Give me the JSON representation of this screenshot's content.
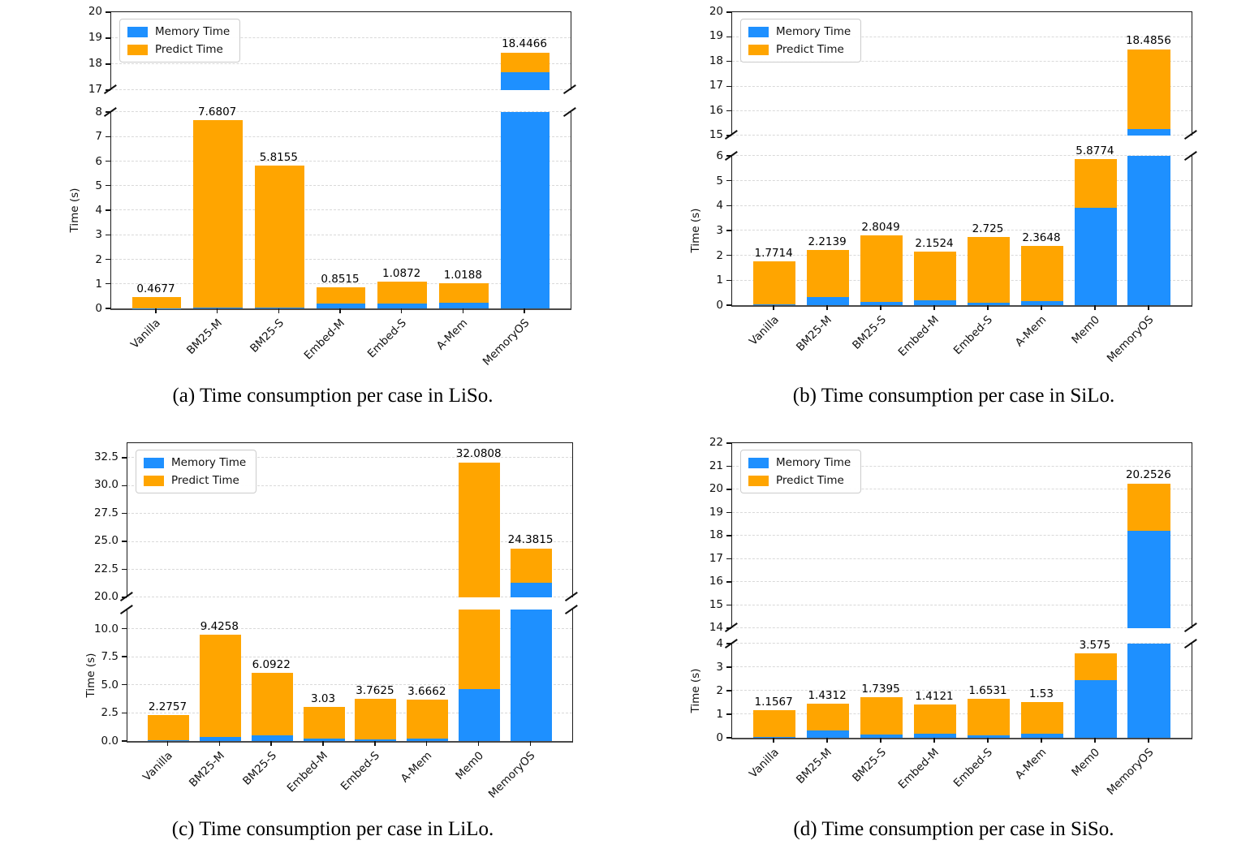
{
  "figure": {
    "legend": {
      "memory_label": "Memory Time",
      "predict_label": "Predict Time",
      "position": "upper left"
    },
    "colors": {
      "memory": "#1E90FF",
      "predict": "#FFA500",
      "grid": "#d9d9d9",
      "label_text": "#000000"
    },
    "ylabel": "Time (s)"
  },
  "chart_data": [
    {
      "id": "a",
      "type": "bar",
      "stacked": true,
      "caption": "(a) Time consumption per case in LiSo.",
      "ylabel": "Time (s)",
      "grid": true,
      "axis_break": true,
      "legend_position": "upper-left",
      "categories": [
        "Vanilla",
        "BM25-M",
        "BM25-S",
        "Embed-M",
        "Embed-S",
        "A-Mem",
        "MemoryOS"
      ],
      "series": [
        {
          "name": "Memory Time",
          "values": [
            0.01,
            0.03,
            0.03,
            0.2,
            0.2,
            0.23,
            17.7
          ]
        },
        {
          "name": "Predict Time",
          "values": [
            0.4577,
            7.6507,
            5.7855,
            0.6515,
            0.8872,
            0.7888,
            0.7466
          ]
        }
      ],
      "totals": [
        0.4677,
        7.6807,
        5.8155,
        0.8515,
        1.0872,
        1.0188,
        18.4466
      ],
      "total_labels": [
        "0.4677",
        "7.6807",
        "5.8155",
        "0.8515",
        "1.0872",
        "1.0188",
        "18.4466"
      ],
      "panels": {
        "upper": {
          "ylim": [
            17,
            20
          ],
          "ticks": [
            [
              17,
              "17"
            ],
            [
              18,
              "18"
            ],
            [
              19,
              "19"
            ],
            [
              20,
              "20"
            ]
          ]
        },
        "lower": {
          "ylim": [
            0,
            8
          ],
          "ticks": [
            [
              0,
              "0"
            ],
            [
              1,
              "1"
            ],
            [
              2,
              "2"
            ],
            [
              3,
              "3"
            ],
            [
              4,
              "4"
            ],
            [
              5,
              "5"
            ],
            [
              6,
              "6"
            ],
            [
              7,
              "7"
            ],
            [
              8,
              "8"
            ]
          ]
        }
      }
    },
    {
      "id": "b",
      "type": "bar",
      "stacked": true,
      "caption": "(b) Time consumption per case in SiLo.",
      "ylabel": "Time (s)",
      "grid": true,
      "axis_break": true,
      "legend_position": "upper-left",
      "categories": [
        "Vanilla",
        "BM25-M",
        "BM25-S",
        "Embed-M",
        "Embed-S",
        "A-Mem",
        "Mem0",
        "MemoryOS"
      ],
      "series": [
        {
          "name": "Memory Time",
          "values": [
            0.02,
            0.33,
            0.13,
            0.2,
            0.09,
            0.17,
            3.9,
            15.25
          ]
        },
        {
          "name": "Predict Time",
          "values": [
            1.7514,
            1.8839,
            2.6749,
            1.9524,
            2.635,
            2.1948,
            1.9774,
            3.2356
          ]
        }
      ],
      "totals": [
        1.7714,
        2.2139,
        2.8049,
        2.1524,
        2.725,
        2.3648,
        5.8774,
        18.4856
      ],
      "total_labels": [
        "1.7714",
        "2.2139",
        "2.8049",
        "2.1524",
        "2.725",
        "2.3648",
        "5.8774",
        "18.4856"
      ],
      "panels": {
        "upper": {
          "ylim": [
            15,
            20
          ],
          "ticks": [
            [
              15,
              "15"
            ],
            [
              16,
              "16"
            ],
            [
              17,
              "17"
            ],
            [
              18,
              "18"
            ],
            [
              19,
              "19"
            ],
            [
              20,
              "20"
            ]
          ]
        },
        "lower": {
          "ylim": [
            0,
            6
          ],
          "ticks": [
            [
              0,
              "0"
            ],
            [
              1,
              "1"
            ],
            [
              2,
              "2"
            ],
            [
              3,
              "3"
            ],
            [
              4,
              "4"
            ],
            [
              5,
              "5"
            ],
            [
              6,
              "6"
            ]
          ]
        }
      }
    },
    {
      "id": "c",
      "type": "bar",
      "stacked": true,
      "caption": "(c) Time consumption per case in LiLo.",
      "ylabel": "Time (s)",
      "grid": true,
      "axis_break": true,
      "legend_position": "upper-left",
      "categories": [
        "Vanilla",
        "BM25-M",
        "BM25-S",
        "Embed-M",
        "Embed-S",
        "A-Mem",
        "Mem0",
        "MemoryOS"
      ],
      "series": [
        {
          "name": "Memory Time",
          "values": [
            0.06,
            0.35,
            0.52,
            0.22,
            0.16,
            0.25,
            4.65,
            21.3
          ]
        },
        {
          "name": "Predict Time",
          "values": [
            2.2157,
            9.0758,
            5.5722,
            2.81,
            3.6025,
            3.4162,
            27.4308,
            3.0815
          ]
        }
      ],
      "totals": [
        2.2757,
        9.4258,
        6.0922,
        3.03,
        3.7625,
        3.6662,
        32.0808,
        24.3815
      ],
      "total_labels": [
        "2.2757",
        "9.4258",
        "6.0922",
        "3.03",
        "3.7625",
        "3.6662",
        "32.0808",
        "24.3815"
      ],
      "panels": {
        "upper": {
          "ylim": [
            20,
            33.8
          ],
          "ticks": [
            [
              20,
              "20.0"
            ],
            [
              22.5,
              "22.5"
            ],
            [
              25,
              "25.0"
            ],
            [
              27.5,
              "27.5"
            ],
            [
              30,
              "30.0"
            ],
            [
              32.5,
              "32.5"
            ]
          ]
        },
        "lower": {
          "ylim": [
            0,
            11.7
          ],
          "ticks": [
            [
              0,
              "0.0"
            ],
            [
              2.5,
              "2.5"
            ],
            [
              5,
              "5.0"
            ],
            [
              7.5,
              "7.5"
            ],
            [
              10,
              "10.0"
            ]
          ]
        }
      }
    },
    {
      "id": "d",
      "type": "bar",
      "stacked": true,
      "caption": "(d) Time consumption per case in SiSo.",
      "ylabel": "Time (s)",
      "grid": true,
      "axis_break": true,
      "legend_position": "upper-left",
      "categories": [
        "Vanilla",
        "BM25-M",
        "BM25-S",
        "Embed-M",
        "Embed-S",
        "A-Mem",
        "Mem0",
        "MemoryOS"
      ],
      "series": [
        {
          "name": "Memory Time",
          "values": [
            0.02,
            0.32,
            0.15,
            0.18,
            0.1,
            0.18,
            2.45,
            18.2
          ]
        },
        {
          "name": "Predict Time",
          "values": [
            1.1367,
            1.1112,
            1.5895,
            1.2321,
            1.5531,
            1.35,
            1.125,
            2.0526
          ]
        }
      ],
      "totals": [
        1.1567,
        1.4312,
        1.7395,
        1.4121,
        1.6531,
        1.53,
        3.575,
        20.2526
      ],
      "total_labels": [
        "1.1567",
        "1.4312",
        "1.7395",
        "1.4121",
        "1.6531",
        "1.53",
        "3.575",
        "20.2526"
      ],
      "panels": {
        "upper": {
          "ylim": [
            14,
            22
          ],
          "ticks": [
            [
              14,
              "14"
            ],
            [
              15,
              "15"
            ],
            [
              16,
              "16"
            ],
            [
              17,
              "17"
            ],
            [
              18,
              "18"
            ],
            [
              19,
              "19"
            ],
            [
              20,
              "20"
            ],
            [
              21,
              "21"
            ],
            [
              22,
              "22"
            ]
          ]
        },
        "lower": {
          "ylim": [
            0,
            4
          ],
          "ticks": [
            [
              0,
              "0"
            ],
            [
              1,
              "1"
            ],
            [
              2,
              "2"
            ],
            [
              3,
              "3"
            ],
            [
              4,
              "4"
            ]
          ]
        }
      }
    }
  ]
}
